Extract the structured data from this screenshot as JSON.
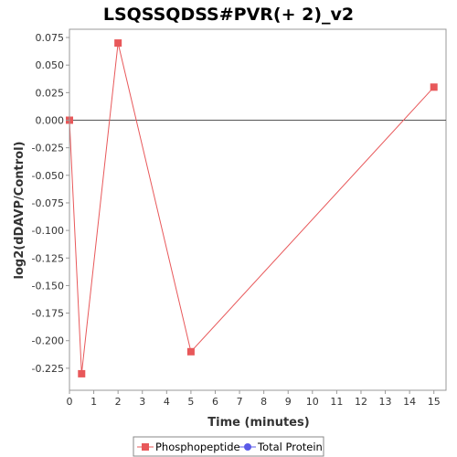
{
  "chart_data": {
    "type": "line",
    "title": "LSQSSQDSS#PVR(+ 2)_v2",
    "xlabel": "Time (minutes)",
    "ylabel": "log2(dDAVP/Control)",
    "xlim": [
      0,
      15.5
    ],
    "ylim": [
      -0.245,
      0.0825
    ],
    "x_ticks": [
      0,
      1,
      2,
      3,
      4,
      5,
      6,
      7,
      8,
      9,
      10,
      11,
      12,
      13,
      14,
      15
    ],
    "y_ticks": [
      0.075,
      0.05,
      0.025,
      0.0,
      -0.025,
      -0.05,
      -0.075,
      -0.1,
      -0.125,
      -0.15,
      -0.175,
      -0.2,
      -0.225
    ],
    "y_tick_labels": [
      "0.075",
      "0.050",
      "0.025",
      "0.000",
      "-0.025",
      "-0.050",
      "-0.075",
      "-0.100",
      "-0.125",
      "-0.150",
      "-0.175",
      "-0.200",
      "-0.225"
    ],
    "zero_line": true,
    "grid": false,
    "legend_position": "bottom",
    "series": [
      {
        "name": "Phosphopeptide",
        "color": "#e8585a",
        "marker": "square",
        "x": [
          0,
          0.5,
          2,
          5,
          15
        ],
        "y": [
          0.0,
          -0.23,
          0.07,
          -0.21,
          0.03
        ]
      },
      {
        "name": "Total Protein",
        "color": "#5a5ae8",
        "marker": "circle",
        "x": [],
        "y": []
      }
    ]
  }
}
